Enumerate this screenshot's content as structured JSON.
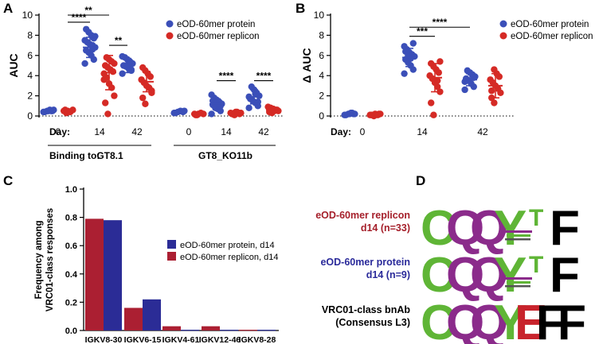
{
  "colors": {
    "protein": "#3b4fb8",
    "replicon": "#d52a25",
    "bar_protein": "#2b2c96",
    "bar_replicon": "#ab1f32",
    "logo_C": "#5fb536",
    "logo_Q": "#8b2b8b",
    "logo_Y": "#5fb536",
    "logo_E": "#c8232c",
    "logo_F": "#000000",
    "title_replicon": "#a51f2a",
    "title_protein": "#2a2a9a"
  },
  "chart_data": [
    {
      "panel": "A",
      "type": "scatter",
      "ylabel": "AUC",
      "ylim": [
        0,
        10
      ],
      "yticks": [
        0,
        2,
        4,
        6,
        8,
        10
      ],
      "legend": [
        "eOD-60mer protein",
        "eOD-60mer replicon"
      ],
      "day_label": "Day:",
      "binding_label": "Binding to:",
      "days": [
        "0",
        "14",
        "42",
        "0",
        "14",
        "42"
      ],
      "groups": [
        "GT8.1",
        "GT8_KO11b"
      ],
      "series": [
        {
          "name": "eOD-60mer protein",
          "means": [
            0.5,
            6.8,
            5.0,
            0.4,
            1.2,
            1.9
          ],
          "sd": [
            0.1,
            1.0,
            0.7,
            0.1,
            0.5,
            0.7
          ],
          "points": [
            [
              0.4,
              0.5,
              0.6,
              0.5,
              0.4,
              0.6,
              0.5,
              0.5
            ],
            [
              5.2,
              5.6,
              6.0,
              6.3,
              6.5,
              6.8,
              7.0,
              7.1,
              7.3,
              7.5,
              7.7,
              8.0,
              8.3,
              8.6,
              7.9,
              6.6
            ],
            [
              4.2,
              4.5,
              4.7,
              4.9,
              5.0,
              5.2,
              5.4,
              5.6,
              5.8,
              5.9,
              4.6,
              5.3
            ],
            [
              0.3,
              0.4,
              0.5,
              0.4,
              0.3,
              0.5
            ],
            [
              0.2,
              0.5,
              0.7,
              0.9,
              1.1,
              1.2,
              1.4,
              1.6,
              1.8,
              2.1,
              1.0,
              1.3,
              0.8,
              1.5
            ],
            [
              0.8,
              1.0,
              1.3,
              1.5,
              1.7,
              2.0,
              2.3,
              2.6,
              2.9,
              1.9,
              1.4,
              2.2
            ]
          ]
        },
        {
          "name": "eOD-60mer replicon",
          "means": [
            0.5,
            4.3,
            3.4,
            0.2,
            0.3,
            0.6
          ],
          "sd": [
            0.1,
            1.7,
            1.0,
            0.05,
            0.1,
            0.2
          ],
          "points": [
            [
              0.3,
              0.5,
              0.6,
              0.4,
              0.5,
              0.6
            ],
            [
              0.2,
              1.3,
              2.0,
              2.8,
              3.2,
              3.8,
              4.2,
              4.4,
              4.6,
              4.8,
              5.0,
              5.2,
              5.4,
              5.6,
              5.8,
              3.6
            ],
            [
              1.2,
              1.8,
              2.3,
              2.8,
              3.0,
              3.3,
              3.6,
              3.9,
              4.2,
              4.5,
              4.8,
              2.5
            ],
            [
              0.1,
              0.2,
              0.2,
              0.3,
              0.2,
              0.1
            ],
            [
              0.1,
              0.2,
              0.3,
              0.3,
              0.4,
              0.2,
              0.3,
              0.2,
              0.4,
              0.3
            ],
            [
              0.3,
              0.4,
              0.5,
              0.6,
              0.7,
              0.8,
              0.9,
              0.6,
              0.5,
              0.7
            ]
          ]
        }
      ],
      "significance": [
        {
          "pair": [
            1,
            2
          ],
          "label": "****",
          "level": 9.3
        },
        {
          "pair": [
            1,
            3
          ],
          "label": "**",
          "level": 10.0
        },
        {
          "pair": [
            3,
            4
          ],
          "label": "**",
          "level": 7.0
        },
        {
          "pair": [
            8,
            9
          ],
          "label": "****",
          "level": 3.5
        },
        {
          "pair": [
            10,
            11
          ],
          "label": "****",
          "level": 3.5
        }
      ]
    },
    {
      "panel": "B",
      "type": "scatter",
      "ylabel": "Δ AUC",
      "ylim": [
        0,
        10
      ],
      "yticks": [
        0,
        2,
        4,
        6,
        8,
        10
      ],
      "legend": [
        "eOD-60mer protein",
        "eOD-60mer replicon"
      ],
      "day_label": "Day:",
      "days": [
        "0",
        "14",
        "42"
      ],
      "series": [
        {
          "name": "eOD-60mer protein",
          "means": [
            0.2,
            5.8,
            3.6
          ],
          "sd": [
            0.05,
            0.9,
            0.6
          ],
          "points": [
            [
              0.1,
              0.2,
              0.3,
              0.2,
              0.1,
              0.2,
              0.3,
              0.2
            ],
            [
              4.2,
              4.6,
              5.0,
              5.3,
              5.6,
              5.9,
              6.1,
              6.3,
              6.6,
              6.9,
              7.2,
              5.7,
              6.0,
              6.4
            ],
            [
              2.6,
              2.9,
              3.2,
              3.5,
              3.7,
              3.9,
              4.1,
              4.3,
              4.5,
              3.4,
              3.8
            ]
          ]
        },
        {
          "name": "eOD-60mer replicon",
          "means": [
            0.1,
            3.8,
            3.0
          ],
          "sd": [
            0.05,
            1.4,
            1.2
          ],
          "points": [
            [
              0.0,
              0.1,
              0.2,
              0.1,
              0.2,
              0.1,
              0.1,
              0.2
            ],
            [
              0.1,
              1.3,
              2.4,
              2.9,
              3.3,
              3.7,
              4.0,
              4.3,
              4.6,
              4.9,
              5.2,
              5.4,
              3.5
            ],
            [
              1.3,
              1.8,
              2.3,
              2.7,
              3.0,
              3.3,
              3.6,
              3.9,
              4.2,
              4.6,
              2.5
            ]
          ]
        }
      ],
      "significance": [
        {
          "pair": [
            2,
            3
          ],
          "label": "***",
          "level": 7.9
        },
        {
          "pair": [
            2,
            4
          ],
          "label": "****",
          "level": 8.8
        }
      ]
    },
    {
      "panel": "C",
      "type": "bar",
      "ylabel": "Frequency among VRC01-class responses",
      "ylabel_lines": [
        "Frequency among",
        "VRC01-class responses"
      ],
      "ylim": [
        0,
        1.0
      ],
      "yticks": [
        "0.0",
        "0.2",
        "0.4",
        "0.6",
        "0.8",
        "1.0"
      ],
      "categories": [
        "IGKV8-30",
        "IGKV6-15",
        "IGKV4-61",
        "IGKV12-46",
        "IGKV8-28"
      ],
      "series": [
        {
          "name": "eOD-60mer replicon, d14",
          "values": [
            0.79,
            0.16,
            0.03,
            0.03,
            0.005
          ]
        },
        {
          "name": "eOD-60mer protein, d14",
          "values": [
            0.78,
            0.22,
            0.005,
            0.005,
            0.005
          ]
        }
      ],
      "legend": [
        "eOD-60mer protein, d14",
        "eOD-60mer replicon, d14"
      ]
    }
  ],
  "panel_D": {
    "letter": "D",
    "rows": [
      {
        "title_lines": [
          "eOD-60mer replicon",
          "d14 (n=33)"
        ],
        "title_color": "replicon",
        "letters": [
          "C",
          "Q",
          "Q",
          "Y",
          "T",
          "F"
        ]
      },
      {
        "title_lines": [
          "eOD-60mer protein",
          "d14 (n=9)"
        ],
        "title_color": "protein",
        "letters": [
          "C",
          "Q",
          "Q",
          "Y",
          "T",
          "F"
        ]
      },
      {
        "title_lines": [
          "VRC01-class bnAb",
          "(Consensus L3)"
        ],
        "title_color": "black",
        "letters": [
          "C",
          "Q",
          "Q",
          "Y",
          "E",
          "F",
          "F"
        ]
      }
    ]
  }
}
